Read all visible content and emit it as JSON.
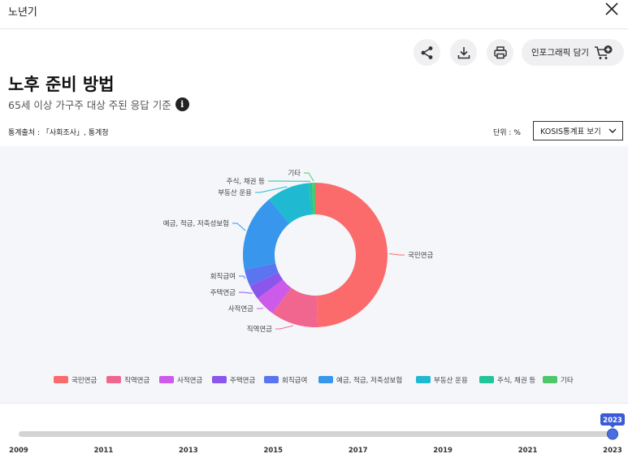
{
  "window": {
    "title": "노년기"
  },
  "toolbar": {
    "infographic_label": "인포그래픽 담기"
  },
  "header": {
    "title": "노후 준비 방법",
    "subtitle": "65세 이상 가구주 대상 주된 응답 기준"
  },
  "meta": {
    "source": "통계출처 : 「사회조사」, 통계청",
    "unit": "단위 : %",
    "kosis_label": "KOSIS통계표 보기"
  },
  "chart_data": {
    "type": "pie",
    "donut": true,
    "legend_position": "bottom",
    "categories": [
      "국민연금",
      "직역연금",
      "사적연금",
      "주택연금",
      "회직급여",
      "예금, 적금, 저축성보험",
      "부동산 운용",
      "주식, 채권 등",
      "기타"
    ],
    "values": [
      50.0,
      10.8,
      4.6,
      3.3,
      3.8,
      17.5,
      9.7,
      0.2,
      0.1
    ],
    "colors": [
      "#fb6b6b",
      "#f0668f",
      "#cd5ae8",
      "#8a56ec",
      "#5b74f0",
      "#3896ec",
      "#1fbad2",
      "#22c59a",
      "#4fc76b"
    ]
  },
  "timeline": {
    "years": [
      "2009",
      "2011",
      "2013",
      "2015",
      "2017",
      "2019",
      "2021",
      "2023"
    ],
    "selected": "2023",
    "min_year": 2009,
    "max_year": 2023
  }
}
